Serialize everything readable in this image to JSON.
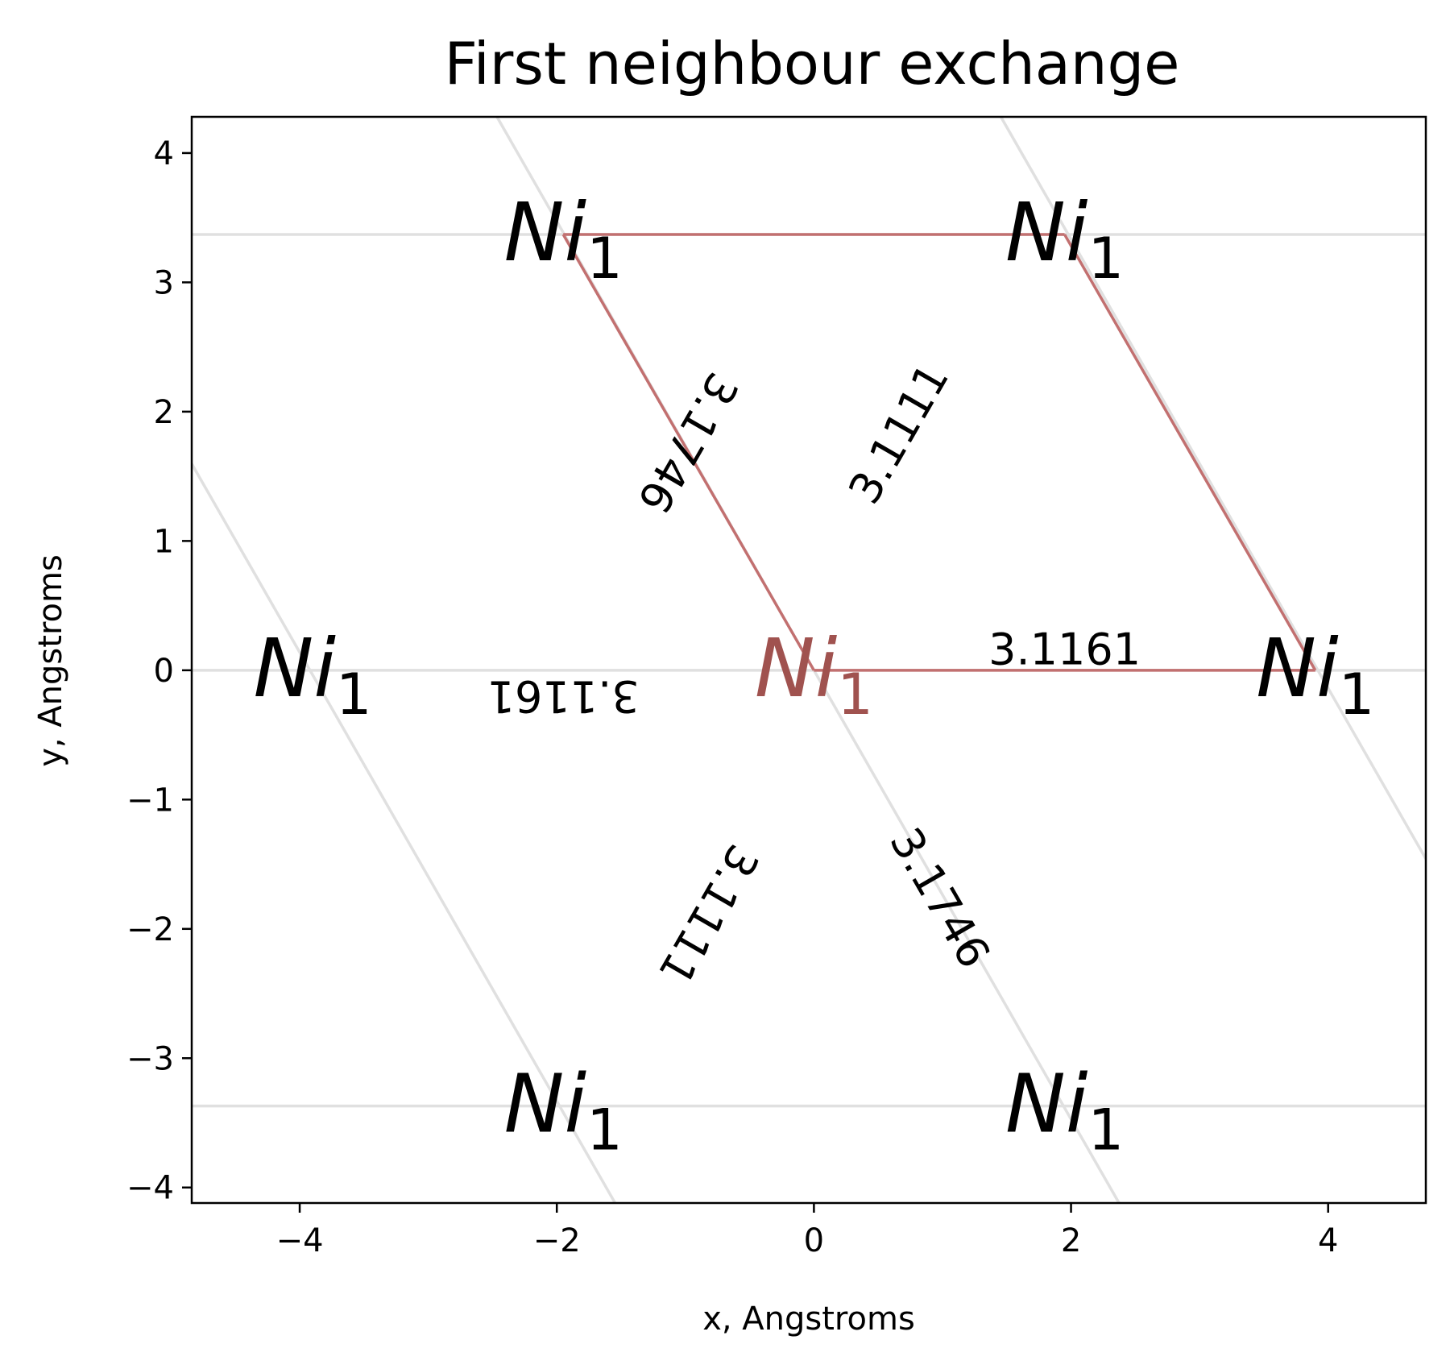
{
  "chart_data": {
    "type": "diagram",
    "title": "First neighbour exchange",
    "xlabel": "x, Angstroms",
    "ylabel": "y, Angstroms",
    "xlim": [
      -4.84,
      4.76
    ],
    "ylim": [
      -4.12,
      4.28
    ],
    "xticks": [
      -4,
      -2,
      0,
      2,
      4
    ],
    "yticks": [
      -4,
      -3,
      -2,
      -1,
      0,
      1,
      2,
      3,
      4
    ],
    "xtick_labels": [
      "−4",
      "−2",
      "0",
      "2",
      "4"
    ],
    "ytick_labels": [
      "−4",
      "−3",
      "−2",
      "−1",
      "0",
      "1",
      "2",
      "3",
      "4"
    ],
    "grid": false,
    "colors": {
      "bond": "#c27070",
      "lattice": "#e0e0e0",
      "center_atom": "#a0524f",
      "atom": "#000000"
    },
    "lattice_lines": [
      {
        "x1": -5.0,
        "y1": 3.37,
        "x2": 5.0,
        "y2": 3.37
      },
      {
        "x1": -5.0,
        "y1": 0.0,
        "x2": 5.0,
        "y2": 0.0
      },
      {
        "x1": -5.0,
        "y1": -3.37,
        "x2": 5.0,
        "y2": -3.37
      },
      {
        "x1": -2.65,
        "y1": 4.6,
        "x2": 2.65,
        "y2": -4.6
      },
      {
        "x1": 1.27,
        "y1": 4.6,
        "x2": 6.57,
        "y2": -4.6
      },
      {
        "x1": -6.57,
        "y1": 4.6,
        "x2": -1.27,
        "y2": -4.6
      }
    ],
    "bonds": [
      {
        "x1": 0.0,
        "y1": 0.0,
        "x2": 3.9,
        "y2": 0.0
      },
      {
        "x1": 0.0,
        "y1": 0.0,
        "x2": -1.95,
        "y2": 3.37
      },
      {
        "x1": -1.95,
        "y1": 3.37,
        "x2": 1.95,
        "y2": 3.37
      },
      {
        "x1": 1.95,
        "y1": 3.37,
        "x2": 3.9,
        "y2": 0.0
      }
    ],
    "atoms": [
      {
        "x": 0.0,
        "y": 0.0,
        "label": "Ni",
        "sub": "1",
        "center": true
      },
      {
        "x": 3.9,
        "y": 0.0,
        "label": "Ni",
        "sub": "1",
        "center": false
      },
      {
        "x": -3.9,
        "y": 0.0,
        "label": "Ni",
        "sub": "1",
        "center": false
      },
      {
        "x": -1.95,
        "y": 3.37,
        "label": "Ni",
        "sub": "1",
        "center": false
      },
      {
        "x": 1.95,
        "y": 3.37,
        "label": "Ni",
        "sub": "1",
        "center": false
      },
      {
        "x": -1.95,
        "y": -3.37,
        "label": "Ni",
        "sub": "1",
        "center": false
      },
      {
        "x": 1.95,
        "y": -3.37,
        "label": "Ni",
        "sub": "1",
        "center": false
      }
    ],
    "distance_labels": [
      {
        "text": "3.1161",
        "x": 1.95,
        "y": 0.16,
        "angle": 0
      },
      {
        "text": "3.1161",
        "x": -1.95,
        "y": -0.2,
        "angle": 180
      },
      {
        "text": "3.1746",
        "x": -0.98,
        "y": 1.76,
        "angle": 120
      },
      {
        "text": "3.1746",
        "x": 0.98,
        "y": -1.76,
        "angle": 60
      },
      {
        "text": "3.1111",
        "x": 0.66,
        "y": 1.83,
        "angle": -60
      },
      {
        "text": "3.1111",
        "x": -0.82,
        "y": -1.89,
        "angle": 120
      }
    ]
  }
}
